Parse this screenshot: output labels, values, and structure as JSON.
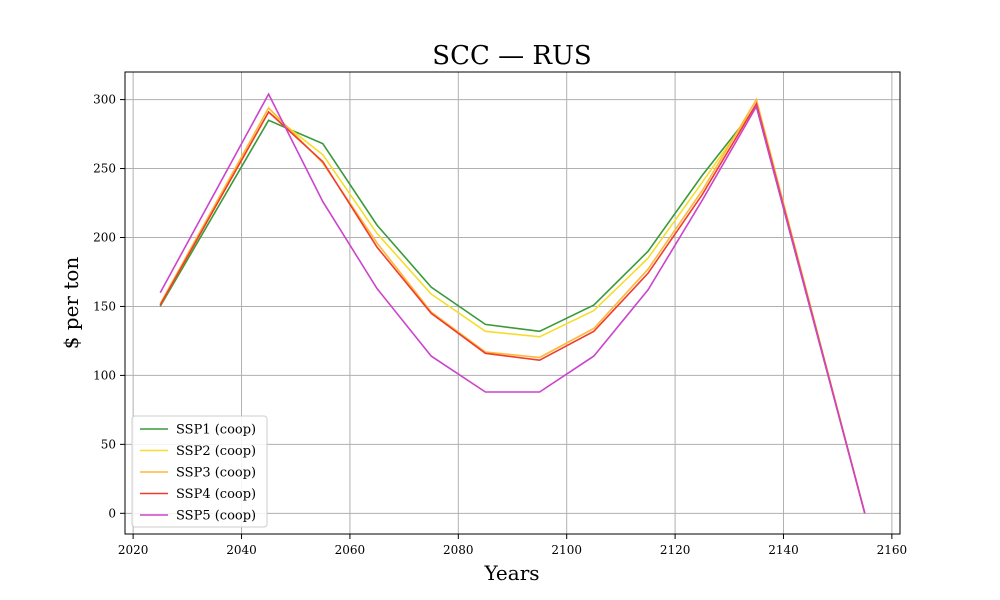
{
  "chart_data": {
    "type": "line",
    "title": "SCC — RUS",
    "xlabel": "Years",
    "ylabel": "$ per ton",
    "xlim": [
      2018.5,
      2161.5
    ],
    "ylim": [
      -15,
      320
    ],
    "xticks": [
      2020,
      2040,
      2060,
      2080,
      2100,
      2120,
      2140,
      2160
    ],
    "yticks": [
      0,
      50,
      100,
      150,
      200,
      250,
      300
    ],
    "grid": true,
    "legend_position": "bottom-left",
    "x": [
      2025,
      2045,
      2055,
      2065,
      2075,
      2085,
      2095,
      2105,
      2115,
      2125,
      2135,
      2155
    ],
    "series": [
      {
        "name": "SSP1 (coop)",
        "color": "#3a9a3a",
        "values": [
          150,
          285,
          268,
          209,
          164,
          137,
          132,
          151,
          190,
          245,
          295,
          0
        ]
      },
      {
        "name": "SSP2 (coop)",
        "color": "#f5dd2e",
        "values": [
          151,
          291,
          260,
          203,
          159,
          132,
          128,
          147,
          185,
          240,
          296,
          0
        ]
      },
      {
        "name": "SSP3 (coop)",
        "color": "#ffb836",
        "values": [
          152,
          294,
          254,
          196,
          146,
          117,
          113,
          134,
          177,
          234,
          300,
          0
        ]
      },
      {
        "name": "SSP4 (coop)",
        "color": "#f03c2e",
        "values": [
          151,
          291,
          255,
          193,
          145,
          116,
          111,
          132,
          174,
          231,
          297,
          0
        ]
      },
      {
        "name": "SSP5 (coop)",
        "color": "#cc44cc",
        "values": [
          160,
          304,
          226,
          163,
          114,
          88,
          88,
          114,
          162,
          227,
          295,
          0
        ]
      }
    ]
  }
}
